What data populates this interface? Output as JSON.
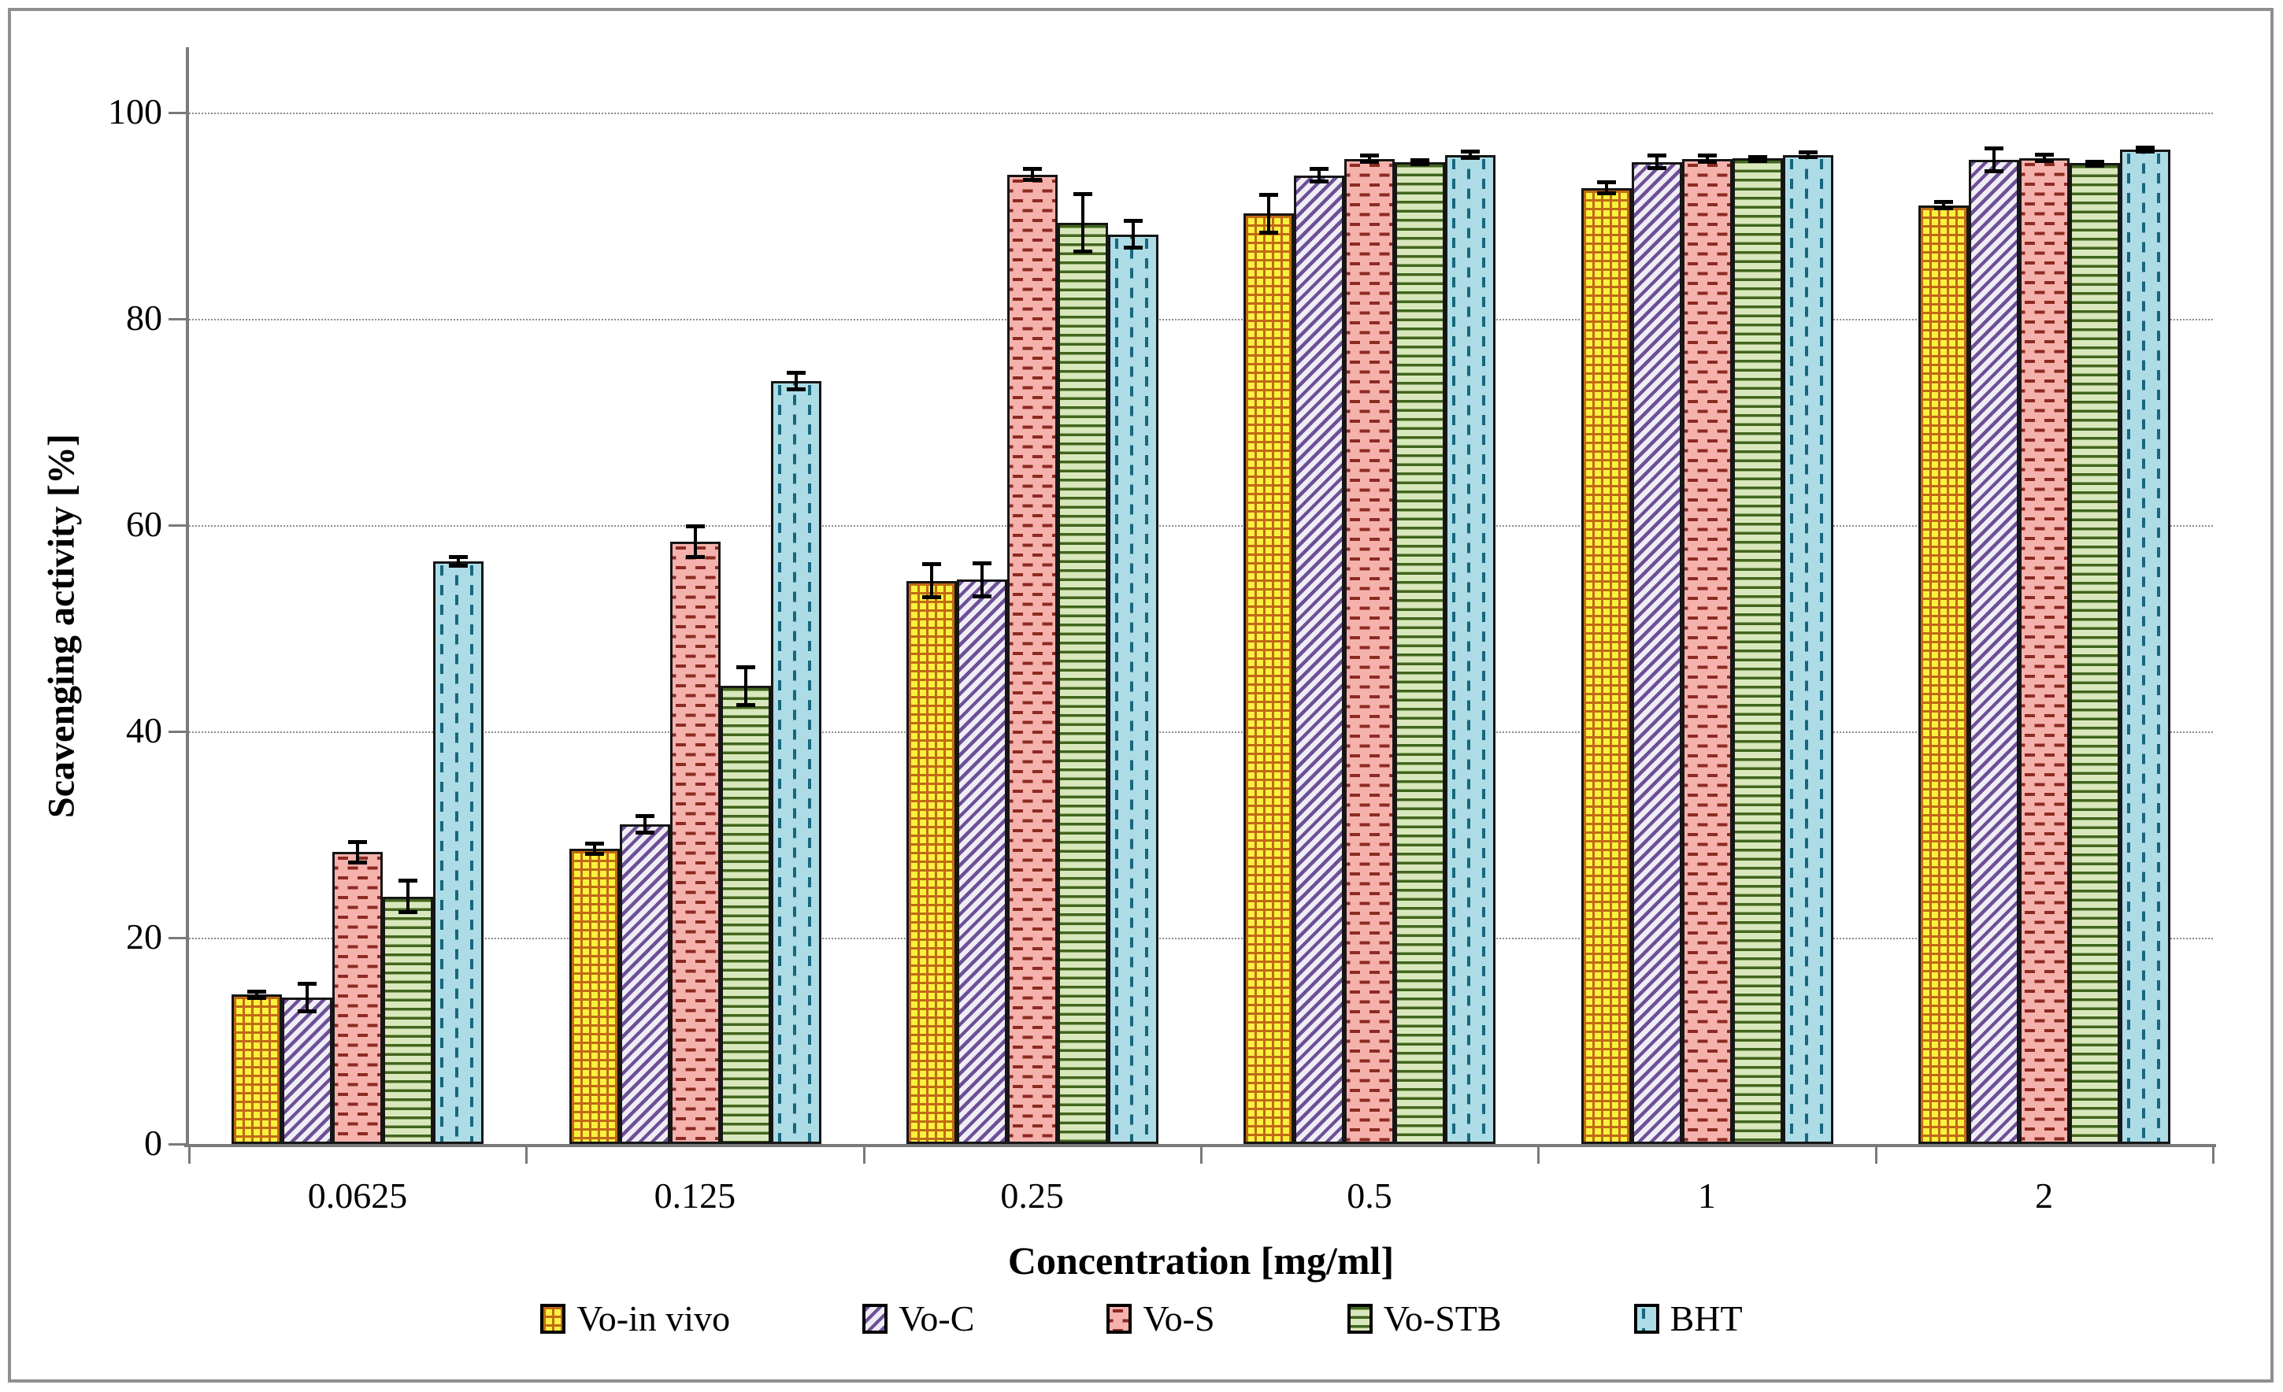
{
  "chart_data": {
    "type": "bar",
    "title": "",
    "xlabel": "Concentration [mg/ml]",
    "ylabel": "Scavenging activity [%]",
    "categories": [
      "0.0625",
      "0.125",
      "0.25",
      "0.5",
      "1",
      "2"
    ],
    "y_ticks": [
      0,
      20,
      40,
      60,
      80,
      100
    ],
    "ylim": [
      0,
      100
    ],
    "grid": "horizontal-dotted",
    "legend_position": "bottom",
    "error_bars": true,
    "series": [
      {
        "name": "Vo-in vivo",
        "pattern": "checker-grid",
        "fill": "#FAF23E",
        "pattern_color": "#C06A15",
        "values": [
          14.5,
          28.6,
          54.6,
          90.2,
          92.7,
          91.0
        ],
        "errors": [
          0.5,
          0.7,
          1.8,
          2.0,
          0.7,
          0.5
        ]
      },
      {
        "name": "Vo-C",
        "pattern": "diagonal-stripes",
        "fill": "#EFEDF5",
        "pattern_color": "#6E5096",
        "values": [
          14.2,
          31.0,
          54.7,
          93.9,
          95.2,
          95.4
        ],
        "errors": [
          1.5,
          1.0,
          1.8,
          0.8,
          0.8,
          1.3
        ]
      },
      {
        "name": "Vo-S",
        "pattern": "horizontal-dashes",
        "fill": "#F5B2AC",
        "pattern_color": "#8C2A22",
        "values": [
          28.3,
          58.4,
          94.0,
          95.5,
          95.5,
          95.6
        ],
        "errors": [
          1.2,
          1.7,
          0.7,
          0.5,
          0.5,
          0.5
        ]
      },
      {
        "name": "Vo-STB",
        "pattern": "horizontal-lines",
        "fill": "#D9E8BC",
        "pattern_color": "#42661D",
        "values": [
          24.0,
          44.4,
          89.3,
          95.2,
          95.6,
          95.1
        ],
        "errors": [
          1.7,
          2.0,
          3.0,
          0.4,
          0.3,
          0.3
        ]
      },
      {
        "name": "BHT",
        "pattern": "vertical-dashes",
        "fill": "#ADDCE6",
        "pattern_color": "#16677E",
        "values": [
          56.5,
          74.0,
          88.2,
          95.9,
          95.9,
          96.4
        ],
        "errors": [
          0.6,
          1.0,
          1.5,
          0.5,
          0.4,
          0.4
        ]
      }
    ],
    "colors": {
      "axis": "#7a7a7a",
      "gridline": "#8c8c8c",
      "frame_border": "#8f8f8f",
      "bar_outline": "#161616",
      "error_bar": "#000000",
      "background": "#ffffff"
    }
  }
}
